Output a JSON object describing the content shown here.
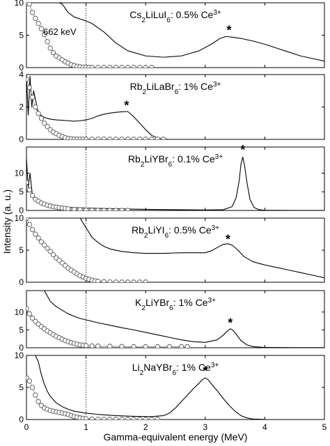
{
  "figure": {
    "ylabel": "Intensity (a. u.)",
    "xlabel": "Gamma-equivalent energy (MeV)",
    "annotation_662": "662 keV",
    "peak_marker": "*"
  },
  "chart_data": [
    {
      "type": "line",
      "label_parts": [
        "Cs",
        "2",
        "LiLuI",
        "6",
        ": 0.5% Ce",
        "3+"
      ],
      "xlim": [
        0,
        5
      ],
      "ylim": [
        0,
        10
      ],
      "yticks": [
        0,
        5,
        10
      ],
      "peak_x": 3.4,
      "peak_y": 4.9,
      "series": [
        {
          "x": [
            0.55,
            0.6,
            0.7,
            0.8,
            0.9,
            1.0,
            1.1,
            1.3,
            1.5,
            1.7,
            2.0,
            2.3,
            2.6,
            2.9,
            3.1,
            3.25,
            3.35,
            3.45,
            3.6,
            3.8,
            4.0,
            4.2,
            4.4,
            4.6,
            4.8,
            5.0
          ],
          "y": [
            10.5,
            9.8,
            8.5,
            7.8,
            7.5,
            7.2,
            6.8,
            5.5,
            3.8,
            2.6,
            1.8,
            1.6,
            1.8,
            2.6,
            3.6,
            4.5,
            4.8,
            4.7,
            4.5,
            4.1,
            3.6,
            3.0,
            2.4,
            1.8,
            1.4,
            1.0
          ]
        },
        {
          "x": [
            0.0,
            0.05,
            0.1,
            0.15,
            0.2,
            0.25,
            0.3,
            0.35,
            0.4,
            0.45,
            0.5,
            0.55,
            0.6,
            0.65,
            0.7,
            0.75,
            0.8,
            0.85,
            0.9,
            0.95,
            1.0,
            1.05,
            1.1,
            1.2,
            1.3,
            1.4,
            1.5,
            1.6,
            1.7,
            1.8,
            1.9,
            2.0,
            2.1
          ],
          "y": [
            10.5,
            9.8,
            8.5,
            7.6,
            6.8,
            6.0,
            5.1,
            4.0,
            3.0,
            2.3,
            1.8,
            1.5,
            1.2,
            0.9,
            0.7,
            0.45,
            0.3,
            0.2,
            0.12,
            0.07,
            0.05,
            0.03,
            0.02,
            0.02,
            0.02,
            0.02,
            0.02,
            0.02,
            0.02,
            0.02,
            0.02,
            0.02,
            0.02
          ],
          "style": "circles"
        }
      ]
    },
    {
      "type": "line",
      "label_parts": [
        "Rb",
        "2",
        "LiLaBr",
        "6",
        ": 1% Ce",
        "3+"
      ],
      "xlim": [
        0,
        5
      ],
      "ylim": [
        0,
        4
      ],
      "yticks": [
        0,
        2,
        4
      ],
      "peak_x": 1.68,
      "peak_y": 1.75,
      "series": [
        {
          "x": [
            0.0,
            0.03,
            0.06,
            0.09,
            0.12,
            0.15,
            0.2,
            0.3,
            0.4,
            0.5,
            0.6,
            0.7,
            0.8,
            0.9,
            1.0,
            1.1,
            1.2,
            1.3,
            1.4,
            1.5,
            1.6,
            1.7,
            1.8,
            1.9,
            2.0,
            2.1,
            2.2,
            2.3,
            2.4
          ],
          "y": [
            3.9,
            1.5,
            3.9,
            2.0,
            3.0,
            2.5,
            1.6,
            1.35,
            1.25,
            1.2,
            1.18,
            1.15,
            1.12,
            1.15,
            1.2,
            1.3,
            1.45,
            1.55,
            1.62,
            1.67,
            1.7,
            1.72,
            1.4,
            1.0,
            0.6,
            0.25,
            0.08,
            0.02,
            0.0
          ]
        },
        {
          "x": [
            0.0,
            0.05,
            0.1,
            0.15,
            0.2,
            0.25,
            0.3,
            0.35,
            0.4,
            0.45,
            0.5,
            0.55,
            0.6,
            0.65,
            0.7,
            0.75,
            0.8,
            0.85,
            0.9,
            0.95,
            1.0,
            1.1,
            1.2,
            1.3,
            1.4,
            1.5,
            1.6,
            1.7,
            1.8,
            1.9,
            2.0,
            2.1,
            2.2,
            2.3
          ],
          "y": [
            3.7,
            3.2,
            2.6,
            2.0,
            1.6,
            1.3,
            1.0,
            0.8,
            0.6,
            0.45,
            0.35,
            0.25,
            0.18,
            0.1,
            0.06,
            0.03,
            0.02,
            0.01,
            0.01,
            0.01,
            0.01,
            0.01,
            0.01,
            0.01,
            0.01,
            0.01,
            0.01,
            0.01,
            0.01,
            0.01,
            0.01,
            0.01,
            0.01,
            0.01
          ],
          "style": "circles"
        }
      ]
    },
    {
      "type": "line",
      "label_parts": [
        "Rb",
        "2",
        "LiYBr",
        "6",
        ": 0.1% Ce",
        "3+"
      ],
      "xlim": [
        0,
        5
      ],
      "ylim": [
        0,
        17
      ],
      "yticks": [
        0,
        5,
        10
      ],
      "peak_x": 3.63,
      "peak_y": 14.8,
      "series": [
        {
          "x": [
            0.0,
            0.03,
            0.06,
            0.1,
            0.15,
            0.2,
            0.3,
            0.5,
            0.7,
            0.9,
            1.0,
            1.2,
            1.5,
            2.0,
            2.5,
            3.0,
            3.3,
            3.45,
            3.52,
            3.57,
            3.6,
            3.63,
            3.66,
            3.7,
            3.75,
            3.82,
            3.9,
            4.0,
            4.5,
            5.0
          ],
          "y": [
            14,
            6,
            10,
            4,
            3,
            2.2,
            1.5,
            1.0,
            0.8,
            0.7,
            0.65,
            0.55,
            0.45,
            0.3,
            0.2,
            0.12,
            0.2,
            1.0,
            3.5,
            8.0,
            12.5,
            14.3,
            12.0,
            7.5,
            3.0,
            0.8,
            0.2,
            0.05,
            0.02,
            0.02
          ]
        },
        {
          "x": [
            0.0,
            0.05,
            0.1,
            0.15,
            0.2,
            0.25,
            0.3,
            0.35,
            0.4,
            0.45,
            0.5,
            0.55,
            0.6,
            0.65,
            0.7,
            0.8,
            0.9,
            1.0,
            1.1,
            1.2,
            1.3,
            1.4,
            1.5,
            1.6,
            1.7
          ],
          "y": [
            7.5,
            5.5,
            4.0,
            3.0,
            2.5,
            2.0,
            1.7,
            1.4,
            1.2,
            1.0,
            0.9,
            0.75,
            0.65,
            0.55,
            0.45,
            0.3,
            0.2,
            0.12,
            0.08,
            0.05,
            0.03,
            0.02,
            0.02,
            0.02,
            0.02
          ],
          "style": "circles"
        }
      ]
    },
    {
      "type": "line",
      "label_parts": [
        "Rb",
        "2",
        "LiYI",
        "6",
        ": 0.5% Ce",
        "3+"
      ],
      "xlim": [
        0,
        5
      ],
      "ylim": [
        0,
        10
      ],
      "yticks": [
        0,
        5,
        10
      ],
      "peak_x": 3.38,
      "peak_y": 5.8,
      "series": [
        {
          "x": [
            0.9,
            1.0,
            1.1,
            1.2,
            1.3,
            1.4,
            1.6,
            1.8,
            2.0,
            2.3,
            2.6,
            2.8,
            3.0,
            3.1,
            3.2,
            3.3,
            3.38,
            3.45,
            3.55,
            3.65,
            3.8,
            4.0,
            4.2,
            4.4,
            4.6,
            4.8,
            5.0
          ],
          "y": [
            10.5,
            8.5,
            7.0,
            6.2,
            5.6,
            5.2,
            4.8,
            4.6,
            4.5,
            4.5,
            4.6,
            4.6,
            4.6,
            4.9,
            5.4,
            5.9,
            6.0,
            5.8,
            5.0,
            4.0,
            3.2,
            2.7,
            2.3,
            1.9,
            1.5,
            1.1,
            0.7
          ]
        },
        {
          "x": [
            0.0,
            0.05,
            0.1,
            0.15,
            0.2,
            0.25,
            0.3,
            0.35,
            0.4,
            0.45,
            0.5,
            0.55,
            0.6,
            0.65,
            0.7,
            0.75,
            0.8,
            0.85,
            0.9,
            0.95,
            1.0,
            1.05,
            1.1,
            1.15,
            1.2,
            1.3,
            1.4,
            1.5,
            1.6,
            1.7,
            1.8,
            1.9,
            2.0
          ],
          "y": [
            10,
            9.0,
            8.2,
            7.5,
            6.9,
            6.3,
            5.8,
            5.3,
            4.8,
            4.3,
            3.8,
            3.4,
            3.0,
            2.6,
            2.2,
            1.9,
            1.6,
            1.3,
            1.0,
            0.8,
            0.6,
            0.45,
            0.32,
            0.22,
            0.15,
            0.08,
            0.05,
            0.03,
            0.02,
            0.02,
            0.02,
            0.02,
            0.02
          ],
          "style": "circles"
        }
      ]
    },
    {
      "type": "line",
      "label_parts": [
        "K",
        "2",
        "LiYBr",
        "6",
        ": 1% Ce",
        "3+"
      ],
      "xlim": [
        0,
        5
      ],
      "ylim": [
        0,
        16
      ],
      "yticks": [
        0,
        5,
        10
      ],
      "peak_x": 3.42,
      "peak_y": 5.4,
      "series": [
        {
          "x": [
            0.3,
            0.4,
            0.5,
            0.6,
            0.7,
            0.8,
            0.9,
            1.0,
            1.2,
            1.4,
            1.6,
            1.8,
            2.0,
            2.2,
            2.4,
            2.6,
            2.8,
            3.0,
            3.2,
            3.3,
            3.38,
            3.42,
            3.46,
            3.52,
            3.6,
            3.7,
            3.8,
            4.0,
            4.5,
            5.0
          ],
          "y": [
            16,
            13,
            11.5,
            10.5,
            9.5,
            8.8,
            8.2,
            7.8,
            7.0,
            6.3,
            5.6,
            5.0,
            4.3,
            3.6,
            2.9,
            2.2,
            1.7,
            1.5,
            2.2,
            3.5,
            4.8,
            5.3,
            5.0,
            3.8,
            2.0,
            0.8,
            0.3,
            0.1,
            0.05,
            0.03
          ]
        },
        {
          "x": [
            0.0,
            0.05,
            0.1,
            0.15,
            0.2,
            0.25,
            0.3,
            0.35,
            0.4,
            0.45,
            0.5,
            0.55,
            0.6,
            0.65,
            0.7,
            0.75,
            0.8,
            0.85,
            0.9,
            0.95,
            1.0,
            1.1,
            1.2,
            1.4,
            1.6,
            1.8,
            2.0,
            2.2,
            2.4,
            2.6,
            2.7
          ],
          "y": [
            11,
            9.5,
            8.3,
            7.4,
            6.6,
            5.9,
            5.3,
            4.7,
            4.2,
            3.7,
            3.2,
            2.8,
            2.4,
            2.0,
            1.7,
            1.4,
            1.2,
            1.0,
            0.8,
            0.7,
            0.6,
            0.5,
            0.45,
            0.4,
            0.35,
            0.3,
            0.3,
            0.3,
            0.3,
            0.3,
            0.3
          ],
          "style": "circles"
        }
      ]
    },
    {
      "type": "line",
      "label_parts": [
        "Li",
        "2",
        "NaYBr",
        "6",
        ": 1% Ce",
        "3+"
      ],
      "xlim": [
        0,
        5
      ],
      "ylim": [
        0,
        10
      ],
      "yticks": [
        0,
        5,
        10
      ],
      "peak_x": 3.0,
      "peak_y": 6.7,
      "series": [
        {
          "x": [
            0.15,
            0.2,
            0.25,
            0.3,
            0.35,
            0.4,
            0.5,
            0.6,
            0.7,
            0.8,
            1.0,
            1.2,
            1.5,
            1.8,
            2.1,
            2.3,
            2.4,
            2.5,
            2.6,
            2.7,
            2.8,
            2.9,
            2.95,
            3.0,
            3.05,
            3.1,
            3.2,
            3.3,
            3.4,
            3.5,
            3.6,
            3.7,
            3.8,
            4.0
          ],
          "y": [
            10.5,
            9.0,
            7.0,
            5.5,
            4.4,
            3.6,
            2.6,
            2.0,
            1.6,
            1.3,
            1.0,
            0.8,
            0.6,
            0.5,
            0.45,
            0.6,
            1.0,
            1.8,
            2.8,
            3.8,
            4.8,
            5.7,
            6.2,
            6.5,
            6.2,
            5.6,
            4.5,
            3.3,
            2.2,
            1.3,
            0.6,
            0.25,
            0.08,
            0.02
          ]
        },
        {
          "x": [
            0.0,
            0.05,
            0.1,
            0.15,
            0.2,
            0.25,
            0.3,
            0.35,
            0.4,
            0.45,
            0.5,
            0.55,
            0.6,
            0.65,
            0.7,
            0.75,
            0.8,
            0.85,
            0.9,
            0.95,
            1.0,
            1.1,
            1.2,
            1.3,
            1.4,
            1.5,
            1.6,
            1.7,
            1.8,
            1.9,
            2.0,
            2.1,
            2.2
          ],
          "y": [
            6.5,
            6.0,
            5.0,
            3.8,
            2.8,
            2.2,
            1.8,
            1.6,
            1.4,
            1.3,
            1.2,
            1.1,
            1.0,
            0.9,
            0.8,
            0.6,
            0.45,
            0.35,
            0.25,
            0.18,
            0.12,
            0.08,
            0.05,
            0.03,
            0.02,
            0.02,
            0.02,
            0.02,
            0.02,
            0.02,
            0.02,
            0.02,
            0.02
          ],
          "style": "circles"
        }
      ]
    }
  ],
  "xaxis": {
    "ticks": [
      0,
      1,
      2,
      3,
      4,
      5
    ],
    "reference_line_x": 1.0
  }
}
